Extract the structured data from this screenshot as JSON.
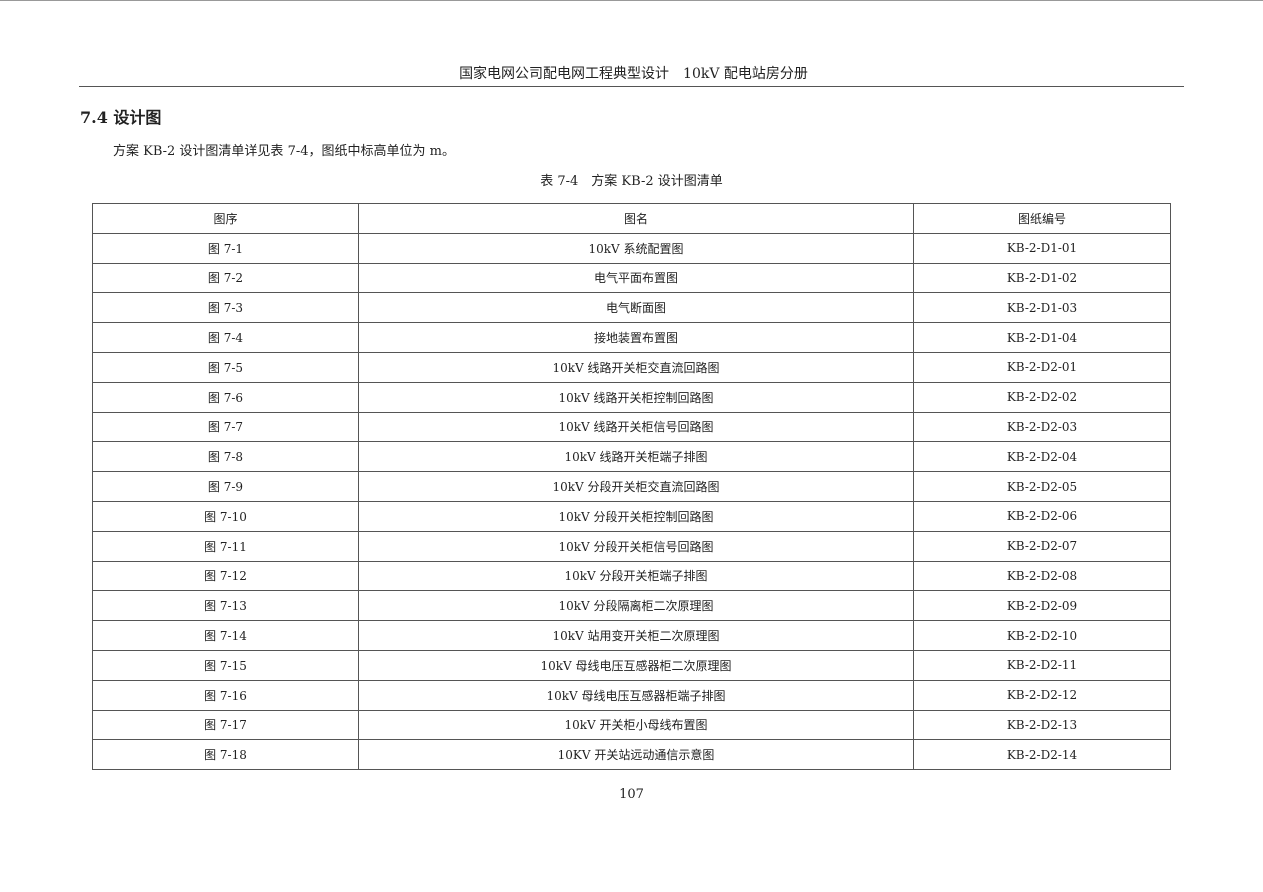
{
  "header": "国家电网公司配电网工程典型设计　10kV 配电站房分册",
  "section_title": "7.4 设计图",
  "paragraph": "方案 KB-2 设计图清单详见表 7-4，图纸中标高单位为 m。",
  "table_caption": "表 7-4　方案 KB-2 设计图清单",
  "table": {
    "headers": [
      "图序",
      "图名",
      "图纸编号"
    ],
    "rows": [
      [
        "图 7-1",
        "10kV 系统配置图",
        "KB-2-D1-01"
      ],
      [
        "图 7-2",
        "电气平面布置图",
        "KB-2-D1-02"
      ],
      [
        "图 7-3",
        "电气断面图",
        "KB-2-D1-03"
      ],
      [
        "图 7-4",
        "接地装置布置图",
        "KB-2-D1-04"
      ],
      [
        "图 7-5",
        "10kV 线路开关柜交直流回路图",
        "KB-2-D2-01"
      ],
      [
        "图 7-6",
        "10kV 线路开关柜控制回路图",
        "KB-2-D2-02"
      ],
      [
        "图 7-7",
        "10kV 线路开关柜信号回路图",
        "KB-2-D2-03"
      ],
      [
        "图 7-8",
        "10kV 线路开关柜端子排图",
        "KB-2-D2-04"
      ],
      [
        "图 7-9",
        "10kV 分段开关柜交直流回路图",
        "KB-2-D2-05"
      ],
      [
        "图 7-10",
        "10kV 分段开关柜控制回路图",
        "KB-2-D2-06"
      ],
      [
        "图 7-11",
        "10kV 分段开关柜信号回路图",
        "KB-2-D2-07"
      ],
      [
        "图 7-12",
        "10kV 分段开关柜端子排图",
        "KB-2-D2-08"
      ],
      [
        "图 7-13",
        "10kV 分段隔离柜二次原理图",
        "KB-2-D2-09"
      ],
      [
        "图 7-14",
        "10kV 站用变开关柜二次原理图",
        "KB-2-D2-10"
      ],
      [
        "图 7-15",
        "10kV 母线电压互感器柜二次原理图",
        "KB-2-D2-11"
      ],
      [
        "图 7-16",
        "10kV 母线电压互感器柜端子排图",
        "KB-2-D2-12"
      ],
      [
        "图 7-17",
        "10kV 开关柜小母线布置图",
        "KB-2-D2-13"
      ],
      [
        "图 7-18",
        "10KV 开关站远动通信示意图",
        "KB-2-D2-14"
      ]
    ]
  },
  "page_number": "107"
}
